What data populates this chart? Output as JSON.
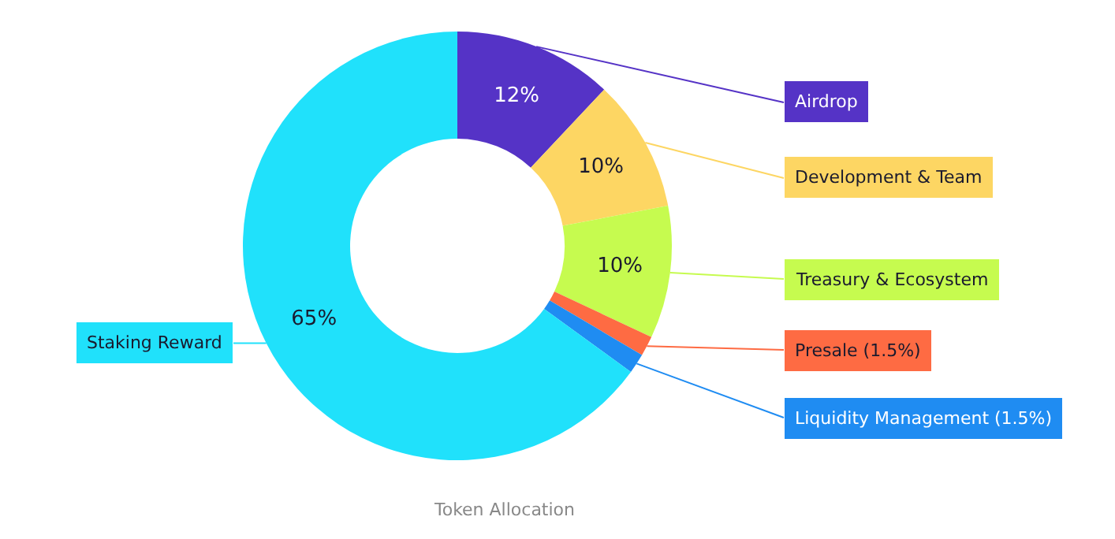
{
  "chart_data": {
    "type": "donut",
    "title": "Token Allocation",
    "categories": [
      "Airdrop",
      "Development & Team",
      "Treasury & Ecosystem",
      "Presale (1.5%)",
      "Liquidity Management (1.5%)",
      "Staking Reward"
    ],
    "values": [
      12,
      10,
      10,
      1.5,
      1.5,
      65
    ],
    "colors": [
      "#5533c6",
      "#fdd663",
      "#c6fb4f",
      "#fe6b43",
      "#1f8cf2",
      "#20e1fb"
    ],
    "value_labels": [
      "12%",
      "10%",
      "10%",
      null,
      null,
      "65%"
    ],
    "legend": false
  }
}
